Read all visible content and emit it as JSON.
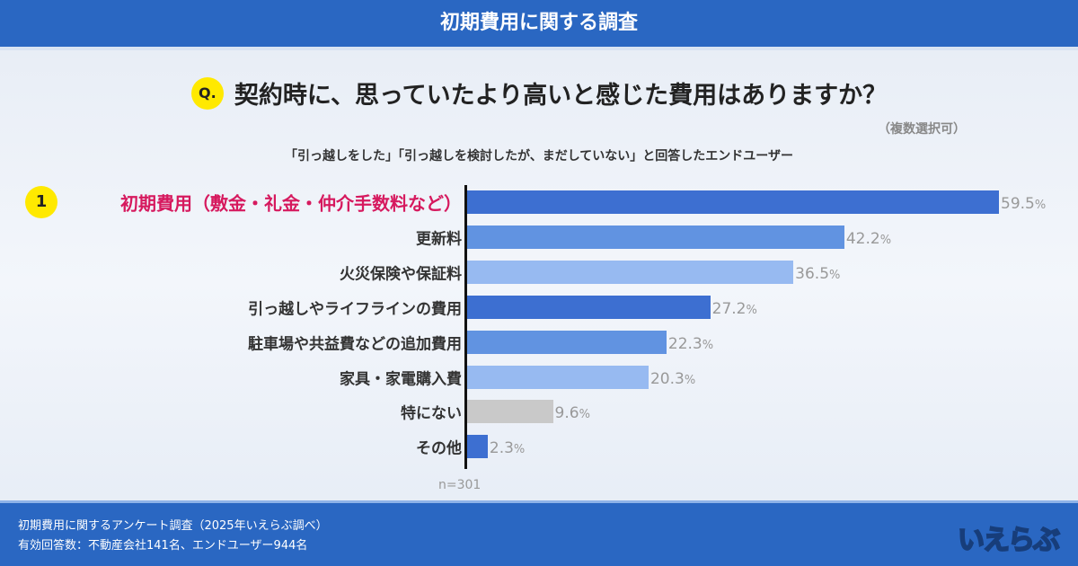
{
  "header": {
    "title": "初期費用に関する調査"
  },
  "question": {
    "badge": "Q.",
    "text": "契約時に、思っていたより高いと感じた費用はありますか？",
    "note": "（複数選択可）"
  },
  "target": "「引っ越しをした」「引っ越しを検討したが、まだしていない」と回答したエンドユーザー",
  "chart_data": {
    "type": "bar",
    "orientation": "horizontal",
    "categories": [
      "初期費用（敷金・礼金・仲介手数料など）",
      "更新料",
      "火災保険や保証料",
      "引っ越しやライフラインの費用",
      "駐車場や共益費などの追加費用",
      "家具・家電購入費",
      "特にない",
      "その他"
    ],
    "values": [
      59.5,
      42.2,
      36.5,
      27.2,
      22.3,
      20.3,
      9.6,
      2.3
    ],
    "value_labels": [
      "59.5",
      "42.2",
      "36.5",
      "27.2",
      "22.3",
      "20.3",
      "9.6",
      "2.3"
    ],
    "unit": "%",
    "colors": [
      "#3d6fd1",
      "#6193e1",
      "#97baf1",
      "#3d6fd1",
      "#6193e1",
      "#97baf1",
      "#c9c9c9",
      "#3d6fd1"
    ],
    "rank_badge": "1",
    "n_label": "n=301",
    "xlim": [
      0,
      60
    ]
  },
  "footer": {
    "line1": "初期費用に関するアンケート調査（2025年いえらぶ調べ）",
    "line2": "有効回答数：不動産会社141名、エンドユーザー944名",
    "logo": "いえらぶ"
  }
}
